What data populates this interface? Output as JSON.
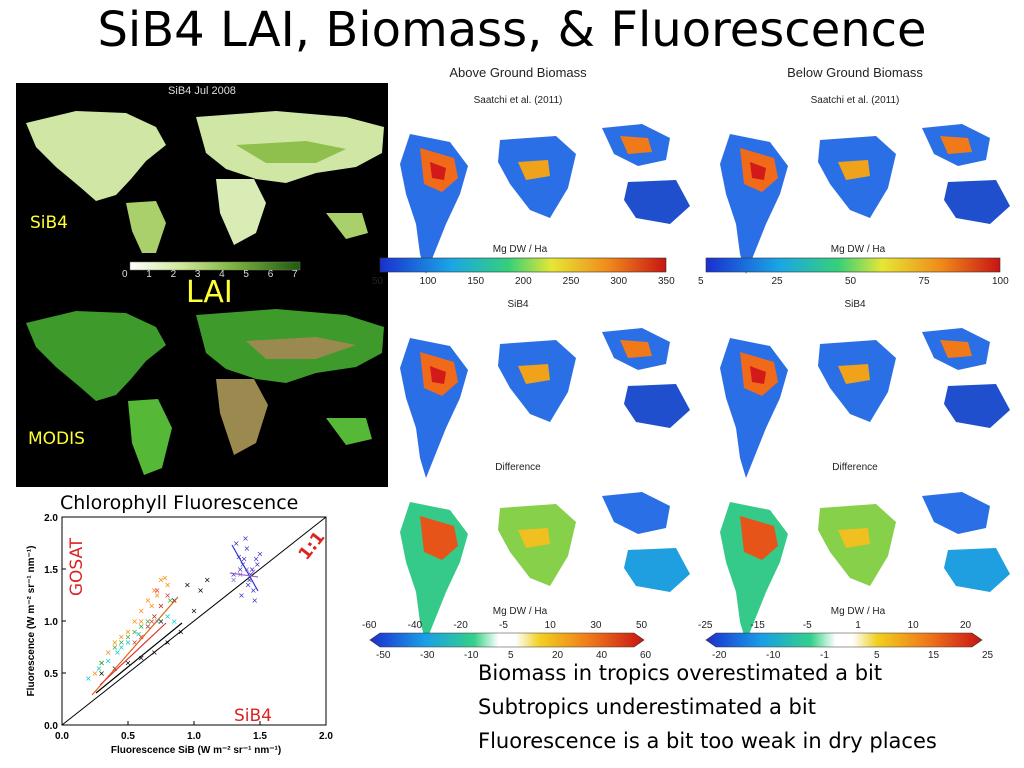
{
  "title": "SiB4 LAI, Biomass, & Fluorescence",
  "lai": {
    "map_title": "SiB4 Jul 2008",
    "top_label": "SiB4",
    "bottom_label": "MODIS",
    "center_label": "LAI",
    "ticks": [
      "0",
      "1",
      "2",
      "3",
      "4",
      "5",
      "6",
      "7"
    ]
  },
  "biomass": {
    "above": {
      "title": "Above Ground Biomass",
      "units": "Mg DW / Ha",
      "ticks": [
        "50",
        "100",
        "150",
        "200",
        "250",
        "300",
        "350"
      ],
      "diff_ticks_top": [
        "-60",
        "-40",
        "-20",
        "-5",
        "10",
        "30",
        "50"
      ],
      "diff_ticks_bottom": [
        "-50",
        "-30",
        "-10",
        "5",
        "20",
        "40",
        "60"
      ]
    },
    "below": {
      "title": "Below Ground Biomass",
      "units": "Mg DW / Ha",
      "ticks": [
        "5",
        "25",
        "50",
        "75",
        "100"
      ],
      "diff_ticks_top": [
        "-25",
        "-15",
        "-5",
        "1",
        "10",
        "20"
      ],
      "diff_ticks_bottom": [
        "-20",
        "-10",
        "-1",
        "5",
        "15",
        "25"
      ]
    },
    "row_labels": [
      "Saatchi et al. (2011)",
      "SiB4",
      "Difference"
    ]
  },
  "fluorescence": {
    "title": "Chlorophyll Fluorescence",
    "xlabel": "Fluorescence SiB (W m⁻² sr⁻¹ nm⁻¹)",
    "ylabel": "Fluorescence (W m⁻² sr⁻¹ nm⁻¹)",
    "gosat_label": "GOSAT",
    "sib4_label": "SiB4",
    "one_to_one_label": "1:1",
    "xticks": [
      "0.0",
      "0.5",
      "1.0",
      "1.5",
      "2.0"
    ],
    "yticks": [
      "0.0",
      "0.5",
      "1.0",
      "1.5",
      "2.0"
    ]
  },
  "chart_data": {
    "type": "scatter",
    "xlim": [
      0,
      2
    ],
    "ylim": [
      0,
      2
    ],
    "xlabel": "Fluorescence SiB (W m⁻² sr⁻¹ nm⁻¹)",
    "ylabel": "Fluorescence (W m⁻² sr⁻¹ nm⁻¹)",
    "series": [
      {
        "color": "#ff8800",
        "x": [
          0.25,
          0.3,
          0.35,
          0.4,
          0.45,
          0.5,
          0.55,
          0.6,
          0.65,
          0.7,
          0.75,
          0.78,
          0.8,
          0.72,
          0.68,
          0.6
        ],
        "y": [
          0.5,
          0.6,
          0.7,
          0.8,
          0.85,
          0.9,
          1.0,
          1.1,
          1.2,
          1.3,
          1.4,
          1.42,
          1.35,
          1.25,
          1.15,
          1.0
        ]
      },
      {
        "color": "#00cccc",
        "x": [
          0.2,
          0.28,
          0.35,
          0.42,
          0.5,
          0.58,
          0.65,
          0.72,
          0.8,
          0.85,
          0.3,
          0.45
        ],
        "y": [
          0.45,
          0.55,
          0.62,
          0.7,
          0.8,
          0.88,
          0.95,
          1.0,
          1.05,
          1.0,
          0.6,
          0.75
        ]
      },
      {
        "color": "#33aa33",
        "x": [
          0.3,
          0.4,
          0.5,
          0.6,
          0.7,
          0.75,
          0.82,
          0.55,
          0.45,
          0.65
        ],
        "y": [
          0.6,
          0.75,
          0.85,
          0.95,
          1.05,
          1.15,
          1.2,
          0.9,
          0.8,
          1.0
        ]
      },
      {
        "color": "#000000",
        "x": [
          0.3,
          0.4,
          0.5,
          0.6,
          0.7,
          0.8,
          0.9,
          1.0,
          1.05,
          1.1,
          0.95,
          0.85,
          0.75
        ],
        "y": [
          0.5,
          0.55,
          0.6,
          0.65,
          0.7,
          0.8,
          0.9,
          1.1,
          1.3,
          1.4,
          1.35,
          1.2,
          1.0
        ]
      },
      {
        "color": "#dd3333",
        "x": [
          0.55,
          0.6,
          0.65,
          0.7,
          0.75,
          0.8,
          0.72,
          0.68
        ],
        "y": [
          0.8,
          0.85,
          0.95,
          1.05,
          1.15,
          1.25,
          1.3,
          1.0
        ]
      },
      {
        "color": "#3333cc",
        "x": [
          1.3,
          1.35,
          1.38,
          1.4,
          1.42,
          1.45,
          1.48,
          1.5,
          1.32,
          1.36,
          1.44,
          1.47,
          1.41,
          1.39,
          1.43,
          1.37,
          1.46,
          1.34
        ],
        "y": [
          1.45,
          1.5,
          1.6,
          1.7,
          1.4,
          1.3,
          1.55,
          1.65,
          1.75,
          1.25,
          1.5,
          1.6,
          1.35,
          1.8,
          1.45,
          1.55,
          1.2,
          1.62
        ]
      },
      {
        "color": "#9966cc",
        "x": [
          1.3,
          1.35,
          1.4,
          1.45
        ],
        "y": [
          1.4,
          1.45,
          1.5,
          1.48
        ]
      }
    ]
  }
}
